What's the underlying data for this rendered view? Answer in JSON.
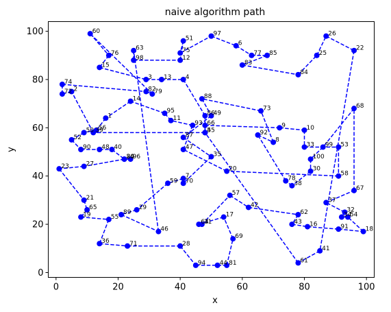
{
  "chart_data": {
    "type": "line",
    "title": "naive algorithm path",
    "xlabel": "x",
    "ylabel": "y",
    "xlim": [
      -2.5,
      102.5
    ],
    "ylim": [
      -2,
      104
    ],
    "xticks": [
      0,
      20,
      40,
      60,
      80,
      100
    ],
    "yticks": [
      0,
      20,
      40,
      60,
      80,
      100
    ],
    "grid": false,
    "line_color": "#0000ff",
    "line_style": "dashed",
    "marker": "circle",
    "points": [
      {
        "id": "1",
        "x": 16,
        "y": 64
      },
      {
        "id": "2",
        "x": 5,
        "y": 75
      },
      {
        "id": "3",
        "x": 29,
        "y": 80
      },
      {
        "id": "4",
        "x": 41,
        "y": 80
      },
      {
        "id": "5",
        "x": 48,
        "y": 58
      },
      {
        "id": "6",
        "x": 58,
        "y": 94
      },
      {
        "id": "7",
        "x": 41,
        "y": 39
      },
      {
        "id": "8",
        "x": 70,
        "y": 54
      },
      {
        "id": "9",
        "x": 72,
        "y": 60
      },
      {
        "id": "10",
        "x": 80,
        "y": 59
      },
      {
        "id": "11",
        "x": 37,
        "y": 63
      },
      {
        "id": "12",
        "x": 40,
        "y": 88
      },
      {
        "id": "13",
        "x": 34,
        "y": 80
      },
      {
        "id": "14",
        "x": 24,
        "y": 71
      },
      {
        "id": "15",
        "x": 14,
        "y": 85
      },
      {
        "id": "16",
        "x": 81,
        "y": 19
      },
      {
        "id": "17",
        "x": 54,
        "y": 23
      },
      {
        "id": "18",
        "x": 99,
        "y": 17
      },
      {
        "id": "19",
        "x": 8,
        "y": 23
      },
      {
        "id": "20",
        "x": 55,
        "y": 42
      },
      {
        "id": "21",
        "x": 9,
        "y": 30
      },
      {
        "id": "22",
        "x": 96,
        "y": 92
      },
      {
        "id": "23",
        "x": 1,
        "y": 43
      },
      {
        "id": "24",
        "x": 22,
        "y": 47
      },
      {
        "id": "25",
        "x": 84,
        "y": 90
      },
      {
        "id": "26",
        "x": 87,
        "y": 98
      },
      {
        "id": "27",
        "x": 9,
        "y": 44
      },
      {
        "id": "28",
        "x": 40,
        "y": 11
      },
      {
        "id": "29",
        "x": 26,
        "y": 26
      },
      {
        "id": "30",
        "x": 82,
        "y": 42
      },
      {
        "id": "31",
        "x": 47,
        "y": 20
      },
      {
        "id": "32",
        "x": 93,
        "y": 25
      },
      {
        "id": "33",
        "x": 80,
        "y": 52
      },
      {
        "id": "34",
        "x": 92,
        "y": 23
      },
      {
        "id": "35",
        "x": 50,
        "y": 48
      },
      {
        "id": "36",
        "x": 14,
        "y": 12
      },
      {
        "id": "37",
        "x": 87,
        "y": 29
      },
      {
        "id": "38",
        "x": 76,
        "y": 36
      },
      {
        "id": "39",
        "x": 12,
        "y": 58
      },
      {
        "id": "40",
        "x": 18,
        "y": 51
      },
      {
        "id": "41",
        "x": 85,
        "y": 9
      },
      {
        "id": "42",
        "x": 62,
        "y": 27
      },
      {
        "id": "43",
        "x": 76,
        "y": 20
      },
      {
        "id": "44",
        "x": 52,
        "y": 3
      },
      {
        "id": "45",
        "x": 48,
        "y": 58
      },
      {
        "id": "46",
        "x": 33,
        "y": 17
      },
      {
        "id": "47",
        "x": 41,
        "y": 51
      },
      {
        "id": "48",
        "x": 14,
        "y": 51
      },
      {
        "id": "49",
        "x": 50,
        "y": 65
      },
      {
        "id": "50",
        "x": 9,
        "y": 58
      },
      {
        "id": "51",
        "x": 41,
        "y": 96
      },
      {
        "id": "52",
        "x": 5,
        "y": 55
      },
      {
        "id": "53",
        "x": 91,
        "y": 52
      },
      {
        "id": "54",
        "x": 94,
        "y": 23
      },
      {
        "id": "55",
        "x": 17,
        "y": 22
      },
      {
        "id": "56",
        "x": 13,
        "y": 59
      },
      {
        "id": "57",
        "x": 56,
        "y": 32
      },
      {
        "id": "58",
        "x": 91,
        "y": 40
      },
      {
        "id": "59",
        "x": 36,
        "y": 37
      },
      {
        "id": "60",
        "x": 11,
        "y": 99
      },
      {
        "id": "61",
        "x": 78,
        "y": 4
      },
      {
        "id": "62",
        "x": 78,
        "y": 24
      },
      {
        "id": "63",
        "x": 25,
        "y": 92
      },
      {
        "id": "64",
        "x": 46,
        "y": 20
      },
      {
        "id": "65",
        "x": 10,
        "y": 26
      },
      {
        "id": "66",
        "x": 48,
        "y": 61
      },
      {
        "id": "67",
        "x": 96,
        "y": 34
      },
      {
        "id": "68",
        "x": 96,
        "y": 68
      },
      {
        "id": "69",
        "x": 57,
        "y": 14
      },
      {
        "id": "70",
        "x": 41,
        "y": 37
      },
      {
        "id": "71",
        "x": 23,
        "y": 11
      },
      {
        "id": "72",
        "x": 2,
        "y": 74
      },
      {
        "id": "73",
        "x": 66,
        "y": 67
      },
      {
        "id": "74",
        "x": 2,
        "y": 78
      },
      {
        "id": "75",
        "x": 40,
        "y": 91
      },
      {
        "id": "76",
        "x": 17,
        "y": 90
      },
      {
        "id": "77",
        "x": 63,
        "y": 90
      },
      {
        "id": "78",
        "x": 74,
        "y": 38
      },
      {
        "id": "79",
        "x": 31,
        "y": 74
      },
      {
        "id": "80",
        "x": 22,
        "y": 47
      },
      {
        "id": "81",
        "x": 55,
        "y": 3
      },
      {
        "id": "82",
        "x": 29,
        "y": 75
      },
      {
        "id": "83",
        "x": 60,
        "y": 86
      },
      {
        "id": "84",
        "x": 78,
        "y": 82
      },
      {
        "id": "85",
        "x": 68,
        "y": 90
      },
      {
        "id": "86",
        "x": 48,
        "y": 65
      },
      {
        "id": "87",
        "x": 41,
        "y": 56
      },
      {
        "id": "88",
        "x": 47,
        "y": 72
      },
      {
        "id": "89",
        "x": 21,
        "y": 24
      },
      {
        "id": "90",
        "x": 8,
        "y": 51
      },
      {
        "id": "91",
        "x": 91,
        "y": 18
      },
      {
        "id": "92",
        "x": 65,
        "y": 57
      },
      {
        "id": "93",
        "x": 44,
        "y": 61
      },
      {
        "id": "94",
        "x": 45,
        "y": 3
      },
      {
        "id": "95",
        "x": 35,
        "y": 66
      },
      {
        "id": "96",
        "x": 24,
        "y": 47
      },
      {
        "id": "97",
        "x": 50,
        "y": 98
      },
      {
        "id": "98",
        "x": 25,
        "y": 88
      },
      {
        "id": "99",
        "x": 86,
        "y": 52
      },
      {
        "id": "100",
        "x": 82,
        "y": 47
      }
    ],
    "path_order": [
      "60",
      "76",
      "15",
      "3",
      "13",
      "4",
      "86",
      "45",
      "66",
      "9",
      "10",
      "33",
      "53",
      "58",
      "20",
      "47",
      "93",
      "11",
      "95",
      "14",
      "1",
      "56",
      "50",
      "52",
      "90",
      "48",
      "40",
      "80",
      "96",
      "24",
      "27",
      "23",
      "21",
      "65",
      "19",
      "55",
      "36",
      "71",
      "28",
      "94",
      "44",
      "81",
      "69",
      "17",
      "64",
      "31",
      "57",
      "42",
      "62",
      "43",
      "16",
      "91",
      "18",
      "54",
      "34",
      "32",
      "37",
      "67",
      "68",
      "99",
      "100",
      "30",
      "38",
      "78",
      "92",
      "8",
      "73",
      "88",
      "49",
      "87",
      "35",
      "70",
      "7",
      "59",
      "29",
      "89",
      "46",
      "63",
      "98",
      "12",
      "51",
      "75",
      "97",
      "6",
      "77",
      "85",
      "83",
      "84",
      "25",
      "26",
      "22",
      "41",
      "61",
      "5",
      "39",
      "2",
      "72",
      "74",
      "82",
      "79",
      "60"
    ]
  }
}
